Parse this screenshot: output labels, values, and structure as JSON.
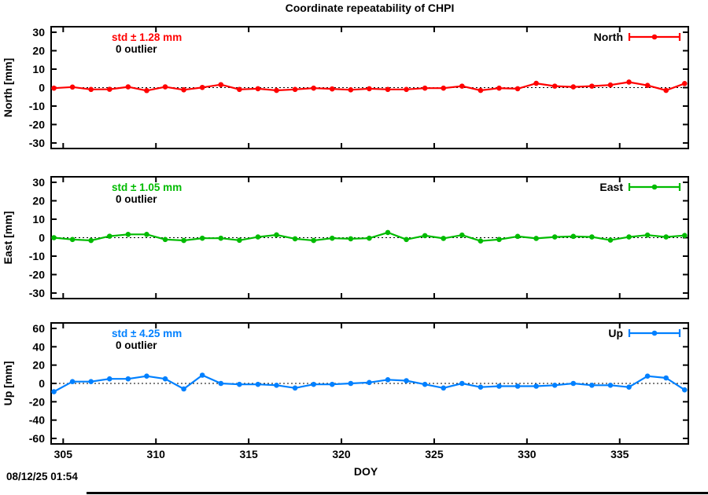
{
  "footer": {
    "timestamp": "08/12/25 01:54"
  },
  "chart_data": {
    "type": "line",
    "title": "Coordinate repeatability of CHPI",
    "xlabel": "DOY",
    "xlim": [
      304.35,
      338.7
    ],
    "xticks": [
      305,
      310,
      315,
      320,
      325,
      330,
      335
    ],
    "grid": "zero-dotted-line-only",
    "legend_position": "top-right-inside",
    "x": [
      304.5,
      305.5,
      306.5,
      307.5,
      308.5,
      309.5,
      310.5,
      311.5,
      312.5,
      313.5,
      314.5,
      315.5,
      316.5,
      317.5,
      318.5,
      319.5,
      320.5,
      321.5,
      322.5,
      323.5,
      324.5,
      325.5,
      326.5,
      327.5,
      328.5,
      329.5,
      330.5,
      331.5,
      332.5,
      333.5,
      334.5,
      335.5,
      336.5,
      337.5,
      338.5
    ],
    "panels": [
      {
        "name": "North",
        "ylabel": "North [mm]",
        "legend_label": "North",
        "std_label": "std ± 1.28 mm",
        "outlier_label": "0 outlier",
        "color": "#ff0000",
        "ylim": [
          -33,
          33
        ],
        "yticks": [
          30,
          20,
          10,
          0,
          -10,
          -20,
          -30
        ],
        "values": [
          -0.3,
          0.3,
          -1.0,
          -0.9,
          0.4,
          -1.6,
          0.4,
          -1.2,
          0.1,
          1.6,
          -1.0,
          -0.6,
          -1.5,
          -1.0,
          -0.3,
          -0.7,
          -1.2,
          -0.6,
          -1.0,
          -1.0,
          -0.3,
          -0.3,
          0.8,
          -1.5,
          -0.3,
          -0.6,
          2.3,
          0.8,
          0.4,
          0.8,
          1.4,
          3.0,
          1.2,
          -1.5,
          2.2
        ]
      },
      {
        "name": "East",
        "ylabel": "East [mm]",
        "legend_label": "East",
        "std_label": "std ± 1.05 mm",
        "outlier_label": "0 outlier",
        "color": "#00bb00",
        "ylim": [
          -33,
          33
        ],
        "yticks": [
          30,
          20,
          10,
          0,
          -10,
          -20,
          -30
        ],
        "values": [
          0.0,
          -1.0,
          -1.5,
          0.8,
          1.8,
          1.8,
          -1.0,
          -1.5,
          -0.3,
          -0.3,
          -1.4,
          0.4,
          1.5,
          -0.6,
          -1.5,
          -0.3,
          -0.6,
          -0.3,
          2.8,
          -1.0,
          1.1,
          -0.4,
          1.4,
          -1.8,
          -1.0,
          0.7,
          -0.4,
          0.4,
          0.7,
          0.4,
          -1.3,
          0.4,
          1.4,
          0.4,
          1.2
        ]
      },
      {
        "name": "Up",
        "ylabel": "Up [mm]",
        "legend_label": "Up",
        "std_label": "std ± 4.25 mm",
        "outlier_label": "0 outlier",
        "color": "#0080ff",
        "ylim": [
          -66,
          66
        ],
        "yticks": [
          60,
          40,
          20,
          0,
          -20,
          -40,
          -60
        ],
        "values": [
          -9,
          2,
          2,
          5,
          5,
          8,
          5,
          -6,
          9,
          0,
          -1,
          -1,
          -2,
          -5,
          -1,
          -1,
          0,
          1,
          4,
          3,
          -1,
          -5,
          0,
          -4,
          -3,
          -3,
          -3,
          -2,
          0,
          -2,
          -2,
          -4,
          8,
          6,
          -7
        ]
      }
    ]
  }
}
